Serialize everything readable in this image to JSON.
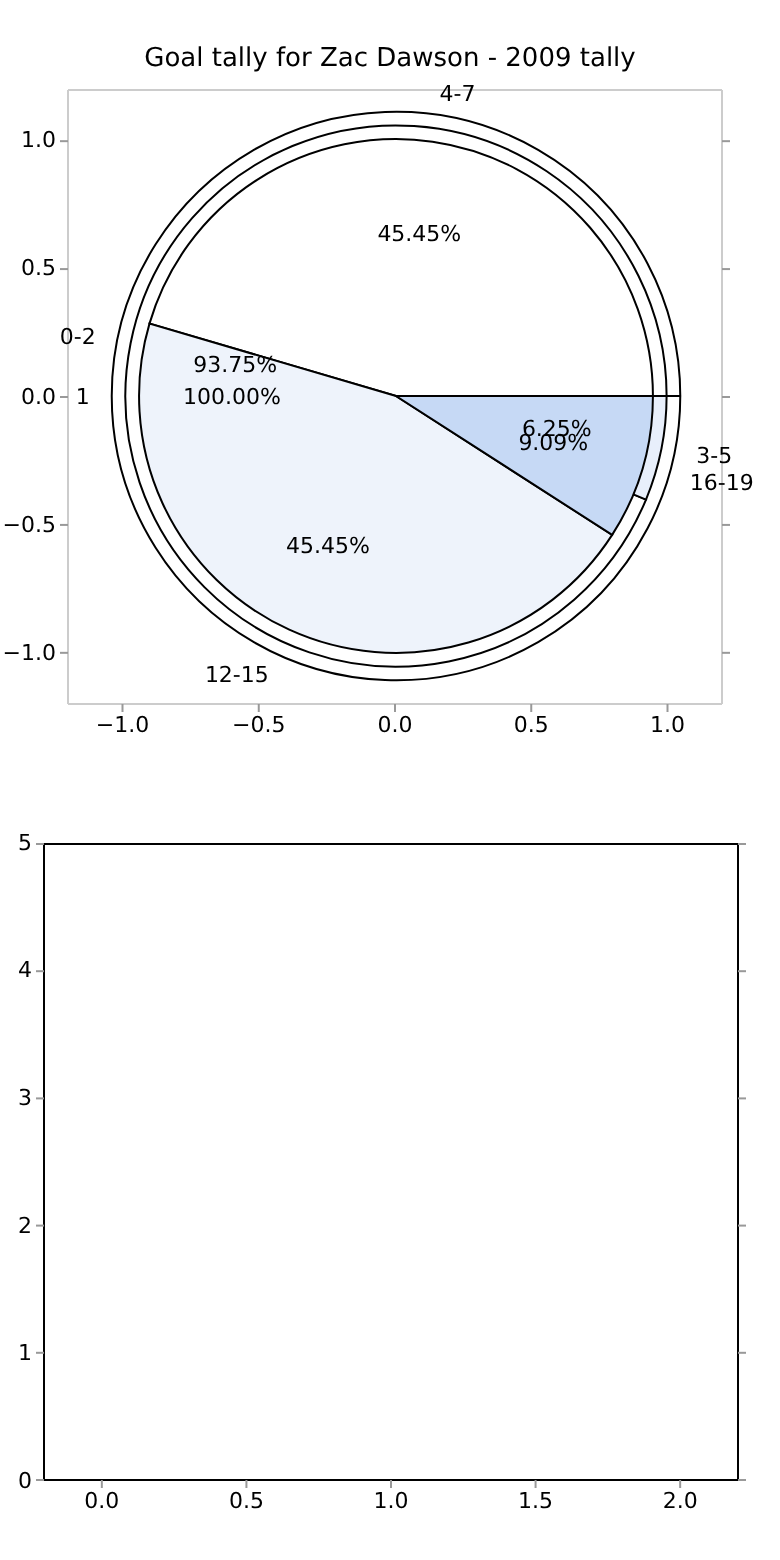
{
  "chart_data": [
    {
      "type": "scatter",
      "title": "Goal tally for Zac Dawson - 2009 tally",
      "xlim": [
        -1.2,
        1.2
      ],
      "ylim": [
        -1.2,
        1.2
      ],
      "xticks": [
        {
          "value": -1,
          "label": "−1.0"
        },
        {
          "value": -0.5,
          "label": "−0.5"
        },
        {
          "value": 0,
          "label": "0.0"
        },
        {
          "value": 0.5,
          "label": "0.5"
        },
        {
          "value": 1,
          "label": "1.0"
        }
      ],
      "yticks": [
        {
          "value": -1,
          "label": "−1.0"
        },
        {
          "value": -0.5,
          "label": "−0.5"
        },
        {
          "value": 0,
          "label": "0.0"
        },
        {
          "value": 0.5,
          "label": "0.5"
        },
        {
          "value": 1,
          "label": "1.0"
        }
      ]
    },
    {
      "type": "pie",
      "categories": [
        "4-7",
        "12-15",
        "16-19"
      ],
      "values": [
        45.45,
        45.45,
        9.09
      ],
      "value_labels": [
        "45.45%",
        "45.45%",
        "9.09%"
      ],
      "colors": [
        "#ffffff",
        "#eef3fb",
        "#c6d9f5"
      ]
    },
    {
      "type": "pie",
      "categories": [
        "0-2",
        "3-5"
      ],
      "values": [
        93.75,
        6.25
      ],
      "value_labels": [
        "93.75%",
        "6.25%"
      ],
      "colors": [
        "#ffffff",
        "#e8effb"
      ]
    },
    {
      "type": "pie",
      "categories": [
        "1"
      ],
      "values": [
        100
      ],
      "value_labels": [
        "100.00%"
      ],
      "colors": [
        "#ffffff"
      ]
    },
    {
      "type": "scatter",
      "xlim": [
        -0.2,
        2.2
      ],
      "ylim": [
        0,
        5
      ],
      "xticks": [
        {
          "value": 0,
          "label": "0.0"
        },
        {
          "value": 0.5,
          "label": "0.5"
        },
        {
          "value": 1,
          "label": "1.0"
        },
        {
          "value": 1.5,
          "label": "1.5"
        },
        {
          "value": 2,
          "label": "2.0"
        }
      ],
      "yticks": [
        0,
        1,
        2,
        3,
        4,
        5
      ]
    }
  ]
}
